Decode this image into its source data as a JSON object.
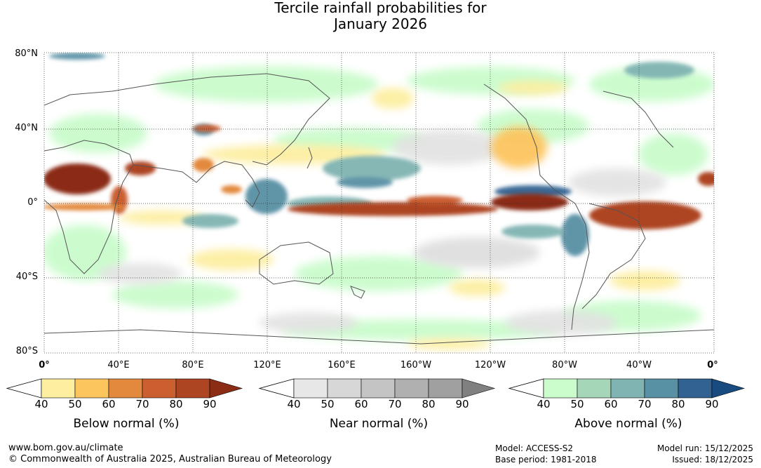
{
  "title": {
    "line1": "Tercile rainfall probabilities for",
    "line2": "January 2026"
  },
  "map": {
    "lat_labels": [
      "80°N",
      "40°N",
      "0°",
      "40°S",
      "80°S"
    ],
    "lon_labels": [
      "0°",
      "40°E",
      "80°E",
      "120°E",
      "160°E",
      "160°W",
      "120°W",
      "80°W",
      "40°W",
      "0°"
    ],
    "grid": "dotted"
  },
  "colorbars": [
    {
      "id": "below",
      "label": "Below normal (%)",
      "ticks": [
        "40",
        "50",
        "60",
        "70",
        "80",
        "90"
      ],
      "colors": [
        "#fdeea0",
        "#fdc55e",
        "#e3893e",
        "#cb5f30",
        "#ad4523",
        "#8b2c15"
      ]
    },
    {
      "id": "near",
      "label": "Near normal (%)",
      "ticks": [
        "40",
        "50",
        "60",
        "70",
        "80",
        "90"
      ],
      "colors": [
        "#e7e7e7",
        "#d7d7d7",
        "#c4c4c4",
        "#b0b0b0",
        "#a0a0a0",
        "#808080"
      ]
    },
    {
      "id": "above",
      "label": "Above normal (%)",
      "ticks": [
        "40",
        "50",
        "60",
        "70",
        "80",
        "90"
      ],
      "colors": [
        "#cafccc",
        "#a6d6b8",
        "#80b4b2",
        "#5890a4",
        "#316292",
        "#184c80"
      ]
    }
  ],
  "footer": {
    "url": "www.bom.gov.au/climate",
    "copyright": "© Commonwealth of Australia 2025, Australian Bureau of Meteorology",
    "model": "Model: ACCESS-S2",
    "base_period": "Base period: 1981-2018",
    "model_run": "Model run: 15/12/2025",
    "issued": "Issued: 18/12/2025"
  }
}
